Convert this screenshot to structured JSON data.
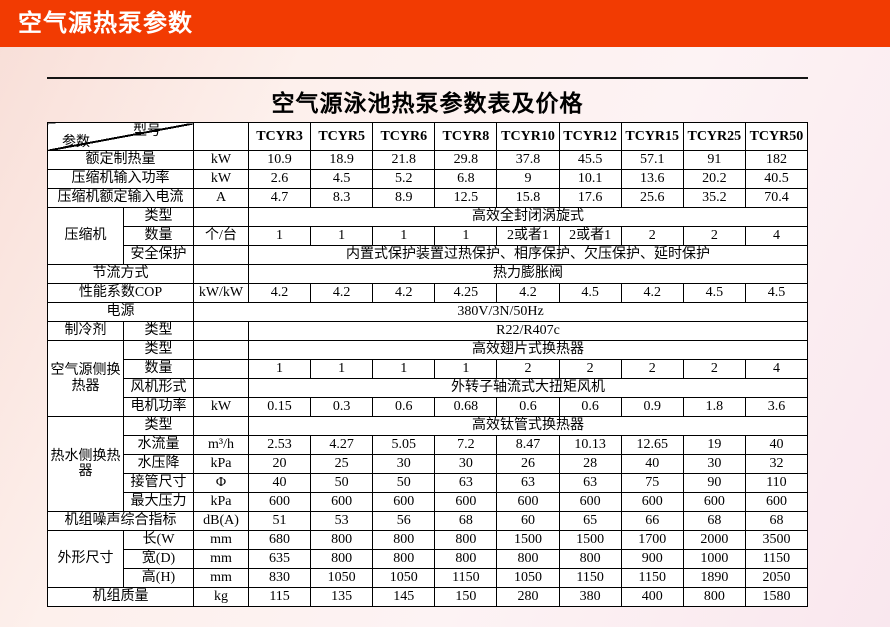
{
  "banner": {
    "title": "空气源热泵参数",
    "bg_color": "#f23b02",
    "text_color": "#ffffff"
  },
  "colors": {
    "accent": "#f23b02",
    "page_background_tint": "#fdf0ee",
    "table_border": "#000000",
    "table_background": "#ffffff"
  },
  "table": {
    "title": "空气源泳池热泵参数表及价格",
    "corner": {
      "param": "参数",
      "model": "型号"
    },
    "models": [
      "TCYR3",
      "TCYR5",
      "TCYR6",
      "TCYR8",
      "TCYR10",
      "TCYR12",
      "TCYR15",
      "TCYR25",
      "TCYR50"
    ],
    "rows": [
      {
        "label": "额定制热量",
        "label_colspan": 2,
        "unit": "kW",
        "values": [
          "10.9",
          "18.9",
          "21.8",
          "29.8",
          "37.8",
          "45.5",
          "57.1",
          "91",
          "182"
        ]
      },
      {
        "label": "压缩机输入功率",
        "label_colspan": 2,
        "unit": "kW",
        "values": [
          "2.6",
          "4.5",
          "5.2",
          "6.8",
          "9",
          "10.1",
          "13.6",
          "20.2",
          "40.5"
        ]
      },
      {
        "label": "压缩机额定输入电流",
        "label_colspan": 2,
        "unit": "A",
        "values": [
          "4.7",
          "8.3",
          "8.9",
          "12.5",
          "15.8",
          "17.6",
          "25.6",
          "35.2",
          "70.4"
        ]
      },
      {
        "group": "压缩机",
        "group_rowspan": 3,
        "label": "类型",
        "unit": "",
        "merged": "高效全封闭涡旋式"
      },
      {
        "label": "数量",
        "unit": "个/台",
        "values": [
          "1",
          "1",
          "1",
          "1",
          "2或者1",
          "2或者1",
          "2",
          "2",
          "4"
        ]
      },
      {
        "label": "安全保护",
        "unit": "",
        "merged": "内置式保护装置过热保护、相序保护、欠压保护、延时保护"
      },
      {
        "label": "节流方式",
        "label_colspan": 2,
        "unit": "",
        "merged": "热力膨胀阀"
      },
      {
        "label": "性能系数COP",
        "label_colspan": 2,
        "unit": "kW/kW",
        "values": [
          "4.2",
          "4.2",
          "4.2",
          "4.25",
          "4.2",
          "4.5",
          "4.2",
          "4.5",
          "4.5"
        ]
      },
      {
        "label": "电源",
        "label_colspan": 2,
        "merged_includes_unit": true,
        "merged": "380V/3N/50Hz"
      },
      {
        "group": "制冷剂",
        "group_rowspan": 1,
        "label": "类型",
        "unit": "",
        "merged": "R22/R407c"
      },
      {
        "group": "空气源侧换热器",
        "group_rowspan": 4,
        "label": "类型",
        "unit": "",
        "merged": "高效翅片式换热器"
      },
      {
        "label": "数量",
        "unit": "",
        "values": [
          "1",
          "1",
          "1",
          "1",
          "2",
          "2",
          "2",
          "2",
          "4"
        ]
      },
      {
        "label": "风机形式",
        "unit": "",
        "merged": "外转子轴流式大扭矩风机"
      },
      {
        "label": "电机功率",
        "unit": "kW",
        "values": [
          "0.15",
          "0.3",
          "0.6",
          "0.68",
          "0.6",
          "0.6",
          "0.9",
          "1.8",
          "3.6"
        ]
      },
      {
        "group": "热水侧换热器",
        "group_rowspan": 5,
        "label": "类型",
        "unit": "",
        "merged": "高效钛管式换热器"
      },
      {
        "label": "水流量",
        "unit": "m³/h",
        "values": [
          "2.53",
          "4.27",
          "5.05",
          "7.2",
          "8.47",
          "10.13",
          "12.65",
          "19",
          "40"
        ]
      },
      {
        "label": "水压降",
        "unit": "kPa",
        "values": [
          "20",
          "25",
          "30",
          "30",
          "26",
          "28",
          "40",
          "30",
          "32"
        ]
      },
      {
        "label": "接管尺寸",
        "unit": "Φ",
        "values": [
          "40",
          "50",
          "50",
          "63",
          "63",
          "63",
          "75",
          "90",
          "110"
        ]
      },
      {
        "label": "最大压力",
        "unit": "kPa",
        "values": [
          "600",
          "600",
          "600",
          "600",
          "600",
          "600",
          "600",
          "600",
          "600"
        ]
      },
      {
        "label": "机组噪声综合指标",
        "label_colspan": 2,
        "unit": "dB(A)",
        "values": [
          "51",
          "53",
          "56",
          "68",
          "60",
          "65",
          "66",
          "68",
          "68"
        ]
      },
      {
        "group": "外形尺寸",
        "group_rowspan": 3,
        "label": "长(W",
        "unit": "mm",
        "values": [
          "680",
          "800",
          "800",
          "800",
          "1500",
          "1500",
          "1700",
          "2000",
          "3500"
        ]
      },
      {
        "label": "宽(D)",
        "unit": "mm",
        "values": [
          "635",
          "800",
          "800",
          "800",
          "800",
          "800",
          "900",
          "1000",
          "1150"
        ]
      },
      {
        "label": "高(H)",
        "unit": "mm",
        "values": [
          "830",
          "1050",
          "1050",
          "1150",
          "1050",
          "1150",
          "1150",
          "1890",
          "2050"
        ]
      },
      {
        "label": "机组质量",
        "label_colspan": 2,
        "unit": "kg",
        "values": [
          "115",
          "135",
          "145",
          "150",
          "280",
          "380",
          "400",
          "800",
          "1580"
        ]
      }
    ]
  }
}
